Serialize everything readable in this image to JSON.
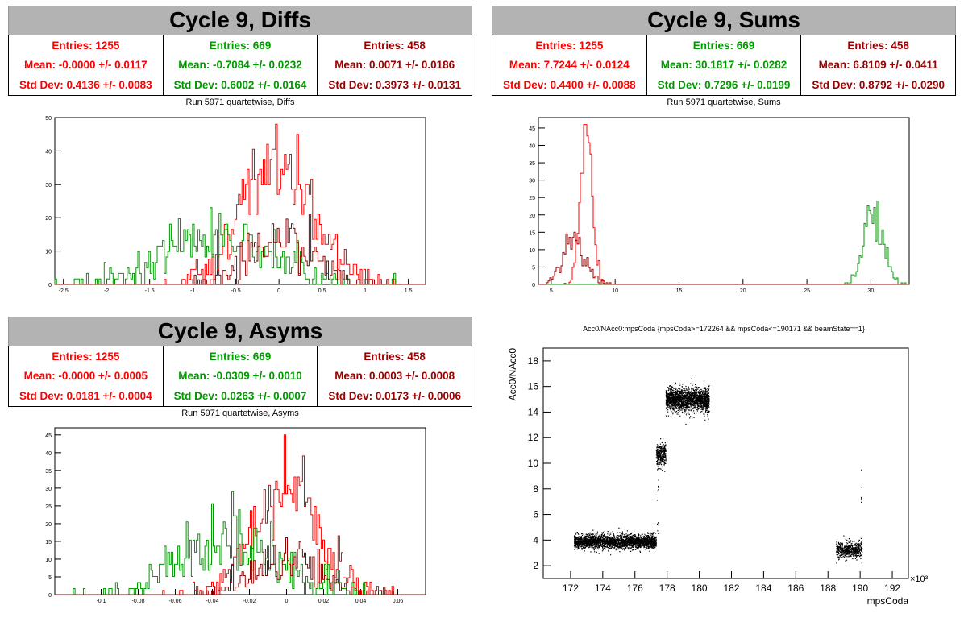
{
  "colors": {
    "red": "#ff0000",
    "green": "#009900",
    "darkred": "#990000"
  },
  "panels": {
    "diffs": {
      "title": "Cycle 9, Diffs",
      "subtitle": "Run 5971 quartetwise, Diffs",
      "stats": [
        {
          "entries": "Entries: 1255",
          "mean": "Mean: -0.0000 +/- 0.0117",
          "std": "Std Dev: 0.4136 +/- 0.0083",
          "color": "#ff0000"
        },
        {
          "entries": "Entries: 669",
          "mean": "Mean: -0.7084 +/- 0.0232",
          "std": "Std Dev: 0.6002 +/- 0.0164",
          "color": "#009900"
        },
        {
          "entries": "Entries: 458",
          "mean": "Mean: 0.0071 +/- 0.0186",
          "std": "Std Dev: 0.3973 +/- 0.0131",
          "color": "#990000"
        }
      ]
    },
    "sums": {
      "title": "Cycle 9, Sums",
      "subtitle": "Run 5971 quartetwise, Sums",
      "stats": [
        {
          "entries": "Entries: 1255",
          "mean": "Mean: 7.7244 +/- 0.0124",
          "std": "Std Dev: 0.4400 +/- 0.0088",
          "color": "#ff0000"
        },
        {
          "entries": "Entries: 669",
          "mean": "Mean: 30.1817 +/- 0.0282",
          "std": "Std Dev: 0.7296 +/- 0.0199",
          "color": "#009900"
        },
        {
          "entries": "Entries: 458",
          "mean": "Mean: 6.8109 +/- 0.0411",
          "std": "Std Dev: 0.8792 +/- 0.0290",
          "color": "#990000"
        }
      ]
    },
    "asyms": {
      "title": "Cycle 9, Asyms",
      "subtitle": "Run 5971 quartetwise, Asyms",
      "stats": [
        {
          "entries": "Entries: 1255",
          "mean": "Mean: -0.0000 +/- 0.0005",
          "std": "Std Dev: 0.0181 +/- 0.0004",
          "color": "#ff0000"
        },
        {
          "entries": "Entries: 669",
          "mean": "Mean: -0.0309 +/- 0.0010",
          "std": "Std Dev: 0.0263 +/- 0.0007",
          "color": "#009900"
        },
        {
          "entries": "Entries: 458",
          "mean": "Mean: 0.0003 +/- 0.0008",
          "std": "Std Dev: 0.0173 +/- 0.0006",
          "color": "#990000"
        }
      ]
    },
    "scatter": {
      "subtitle": "Acc0/NAcc0:mpsCoda {mpsCoda>=172264 && mpsCoda<=190171 && beamState==1}"
    }
  },
  "chart_data": [
    {
      "type": "bar",
      "subtype": "histogram",
      "title": "Run 5971 quartetwise, Diffs",
      "xlim": [
        -2.6,
        1.7
      ],
      "ylim": [
        0,
        50
      ],
      "xticks": [
        -2.5,
        -2,
        -1.5,
        -1,
        -0.5,
        0,
        0.5,
        1,
        1.5
      ],
      "yticks": [
        0,
        10,
        20,
        30,
        40,
        50
      ],
      "series": [
        {
          "color": "#ff0000",
          "entries": 1255,
          "mean": 0.0,
          "std": 0.4136,
          "peak": 48
        },
        {
          "color": "#009900",
          "entries": 669,
          "mean": -0.7084,
          "std": 0.6002,
          "peak": 23
        },
        {
          "color": "#990000",
          "entries": 458,
          "mean": 0.0071,
          "std": 0.3973,
          "peak": 21
        }
      ]
    },
    {
      "type": "bar",
      "subtype": "histogram",
      "title": "Run 5971 quartetwise, Sums",
      "xlim": [
        4,
        33
      ],
      "ylim": [
        0,
        48
      ],
      "xticks": [
        5,
        10,
        15,
        20,
        25,
        30
      ],
      "yticks": [
        0,
        5,
        10,
        15,
        20,
        25,
        30,
        35,
        40,
        45
      ],
      "series": [
        {
          "color": "#ff0000",
          "entries": 1255,
          "mean": 7.7244,
          "std": 0.44,
          "peak": 46
        },
        {
          "color": "#009900",
          "entries": 669,
          "mean": 30.1817,
          "std": 0.7296,
          "peak": 24
        },
        {
          "color": "#990000",
          "entries": 458,
          "mean": 6.8109,
          "std": 0.8792,
          "peak": 15
        }
      ]
    },
    {
      "type": "bar",
      "subtype": "histogram",
      "title": "Run 5971 quartetwise, Asyms",
      "xlim": [
        -0.125,
        0.075
      ],
      "ylim": [
        0,
        47
      ],
      "xticks": [
        -0.1,
        -0.08,
        -0.06,
        -0.04,
        -0.02,
        0,
        0.02,
        0.04,
        0.06
      ],
      "yticks": [
        0,
        5,
        10,
        15,
        20,
        25,
        30,
        35,
        40,
        45
      ],
      "series": [
        {
          "color": "#ff0000",
          "entries": 1255,
          "mean": 0.0,
          "std": 0.0181,
          "peak": 45
        },
        {
          "color": "#009900",
          "entries": 669,
          "mean": -0.0309,
          "std": 0.0263,
          "peak": 29
        },
        {
          "color": "#990000",
          "entries": 458,
          "mean": 0.0003,
          "std": 0.0173,
          "peak": 16
        }
      ]
    },
    {
      "type": "scatter",
      "title": "Acc0/NAcc0:mpsCoda {mpsCoda>=172264 && mpsCoda<=190171 && beamState==1}",
      "xlabel": "mpsCoda",
      "ylabel": "Acc0/NAcc0",
      "xmultiplier": "×10³",
      "xlim": [
        170.3,
        193
      ],
      "ylim": [
        1,
        19
      ],
      "xticks": [
        172,
        174,
        176,
        178,
        180,
        182,
        184,
        186,
        188,
        190,
        192
      ],
      "yticks": [
        2,
        4,
        6,
        8,
        10,
        12,
        14,
        16,
        18
      ],
      "clusters": [
        {
          "x": [
            172.2,
            177.3
          ],
          "y_center": 3.9,
          "y_spread": 0.45,
          "count": 2600
        },
        {
          "x": [
            177.3,
            177.9
          ],
          "y_center": 10.7,
          "y_spread": 0.7,
          "count": 300
        },
        {
          "x": [
            177.9,
            180.6
          ],
          "y_center": 15.0,
          "y_spread": 0.75,
          "count": 2000
        },
        {
          "x": [
            188.5,
            190.1
          ],
          "y_center": 3.3,
          "y_spread": 0.5,
          "count": 550
        }
      ]
    }
  ]
}
